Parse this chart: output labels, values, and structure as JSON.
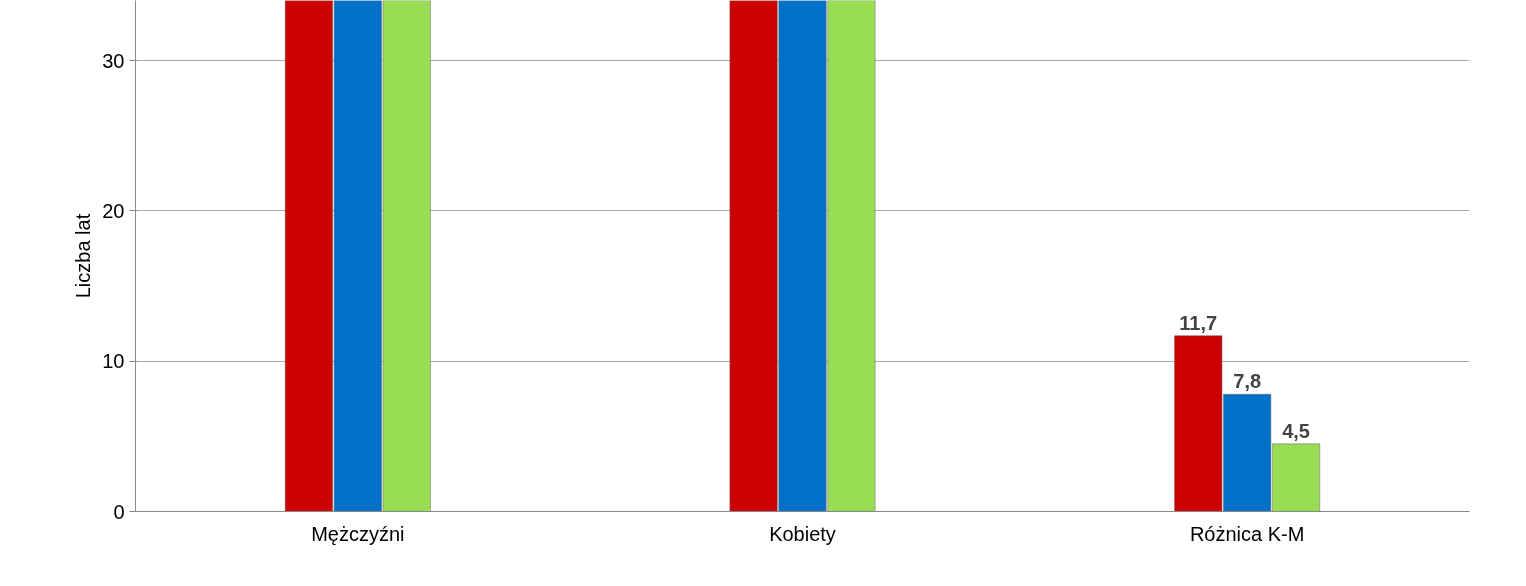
{
  "chart_data": {
    "type": "bar",
    "ylabel": "Liczba lat",
    "categories": [
      "Mężczyźni",
      "Kobiety",
      "Różnica K-M"
    ],
    "series": [
      {
        "color": "#cc0000",
        "values": [
          34,
          34,
          11.7
        ],
        "value_labels": [
          null,
          null,
          "11,7"
        ]
      },
      {
        "color": "#0070c8",
        "values": [
          34,
          34,
          7.8
        ],
        "value_labels": [
          null,
          null,
          "7,8"
        ]
      },
      {
        "color": "#99dd55",
        "values": [
          34,
          34,
          4.5
        ],
        "value_labels": [
          null,
          null,
          "4,5"
        ]
      }
    ],
    "ylim": [
      0,
      34
    ],
    "yticks": [
      0,
      10,
      20,
      30
    ],
    "grid": "y"
  }
}
